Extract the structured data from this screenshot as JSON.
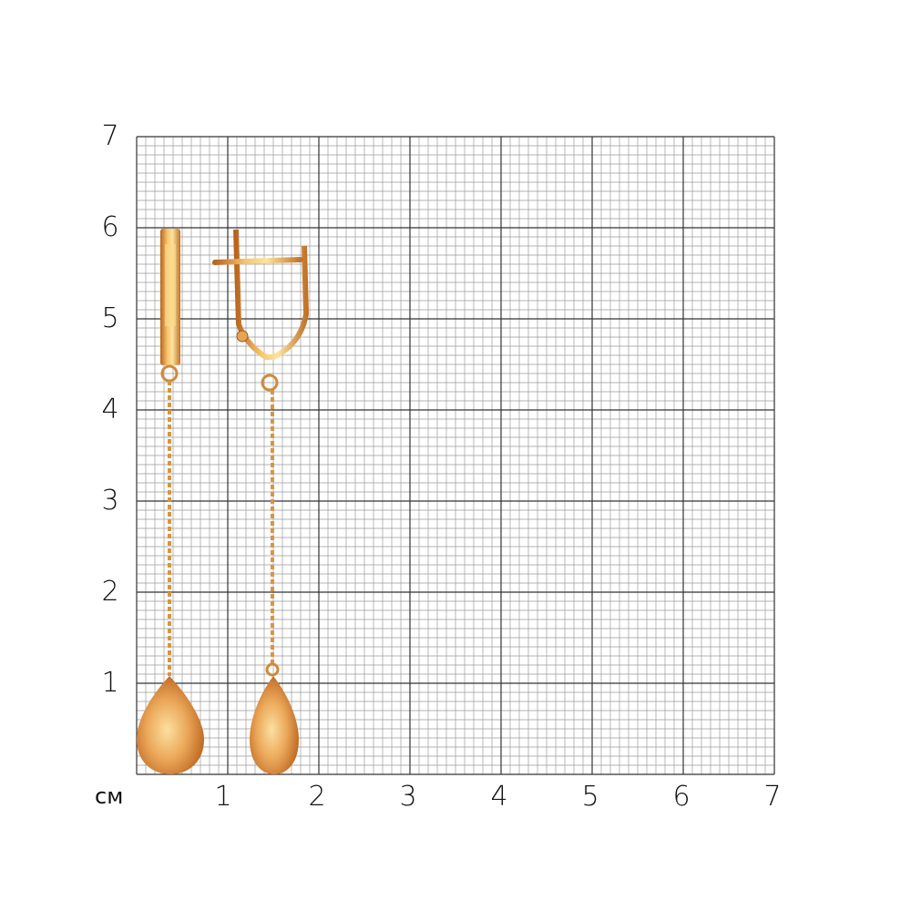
{
  "scale": {
    "unit": "см",
    "x_labels": [
      "1",
      "2",
      "3",
      "4",
      "5",
      "6",
      "7"
    ],
    "y_labels": [
      "1",
      "2",
      "3",
      "4",
      "5",
      "6",
      "7"
    ],
    "grid_color_minor": "#9a9a9a",
    "grid_color_major": "#333333"
  },
  "product": {
    "description_icon": "gold-drop-earrings",
    "metal_color": "#e0a050"
  }
}
